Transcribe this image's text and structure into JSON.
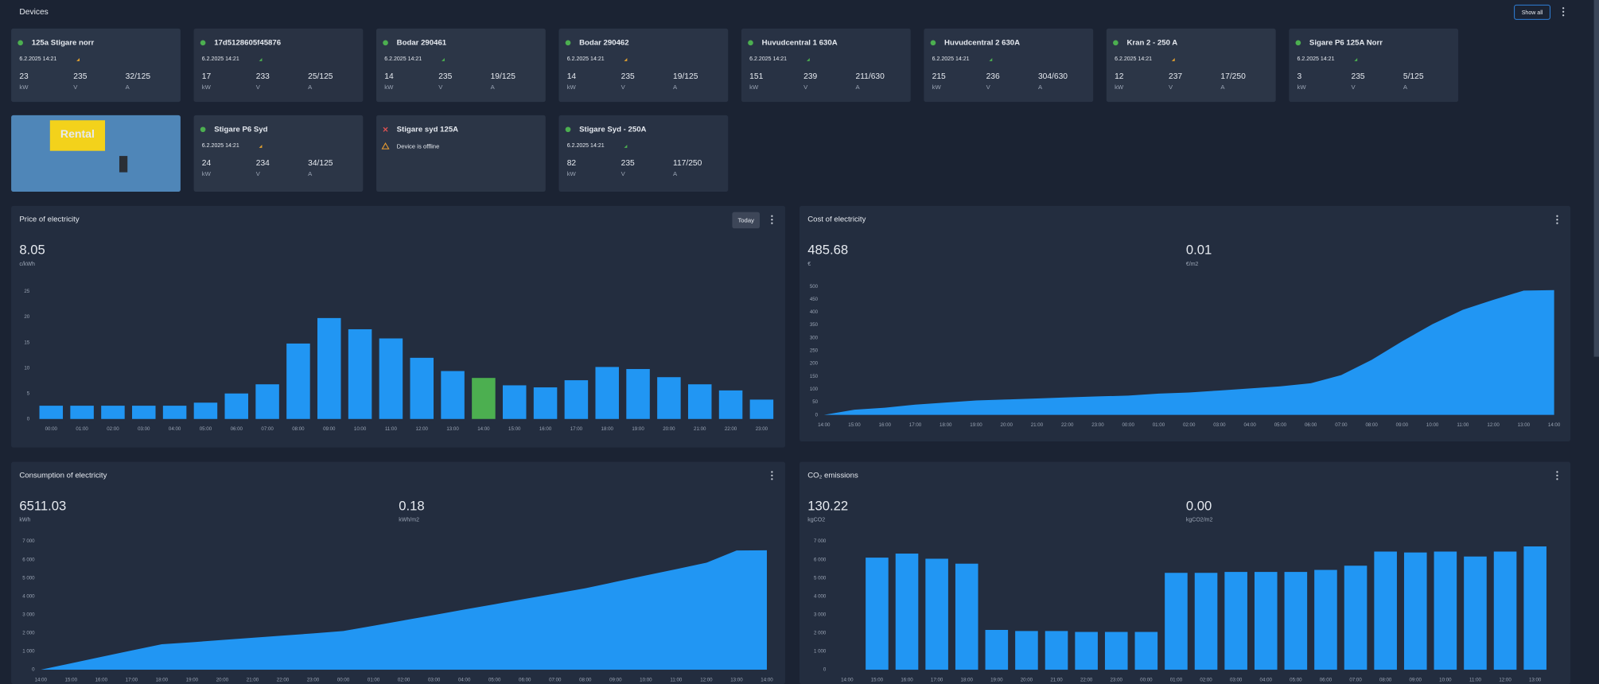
{
  "header": {
    "title": "Devices",
    "button": "Show all"
  },
  "units": {
    "power": "kW",
    "voltage": "V",
    "current": "A"
  },
  "devices": [
    {
      "name": "125a Stigare norr",
      "time": "6.2.2025 14:21",
      "online": true,
      "power": 23,
      "voltage": 235,
      "current": "32/125"
    },
    {
      "name": "17d5128605f45876",
      "time": "6.2.2025 14:21",
      "online": true,
      "power": 17,
      "voltage": 233,
      "current": "25/125"
    },
    {
      "name": "Bodar 290461",
      "time": "6.2.2025 14:21",
      "online": true,
      "power": 14,
      "voltage": 235,
      "current": "19/125"
    },
    {
      "name": "Bodar 290462",
      "time": "6.2.2025 14:21",
      "online": true,
      "power": 14,
      "voltage": 235,
      "current": "19/125"
    },
    {
      "name": "Huvudcentral 1 630A",
      "time": "6.2.2025 14:21",
      "online": true,
      "power": 151,
      "voltage": 239,
      "current": "211/630"
    },
    {
      "name": "Huvudcentral 2 630A",
      "time": "6.2.2025 14:21",
      "online": true,
      "power": 215,
      "voltage": 236,
      "current": "304/630"
    },
    {
      "name": "Kran 2 - 250 A",
      "time": "6.2.2025 14:21",
      "online": true,
      "power": 12,
      "voltage": 237,
      "current": "17/250"
    },
    {
      "name": "Sigare P6 125A Norr",
      "time": "6.2.2025 14:21",
      "online": true,
      "power": 3,
      "voltage": 235,
      "current": "5/125"
    },
    {
      "image_text": "Rental"
    },
    {
      "name": "Stigare P6 Syd",
      "time": "6.2.2025 14:21",
      "online": true,
      "power": 24,
      "voltage": 234,
      "current": "34/125"
    },
    {
      "name": "Stigare syd 125A",
      "online": false,
      "status": "Device is offline"
    },
    {
      "name": "Stigare Syd - 250A",
      "time": "6.2.2025 14:21",
      "online": true,
      "power": 82,
      "voltage": 235,
      "current": "117/250"
    }
  ],
  "chart_data": [
    {
      "type": "bar",
      "title": "Price of electricity",
      "button": "Today",
      "value": "8.05",
      "unit": "c/kWh",
      "categories": [
        "00:00",
        "01:00",
        "02:00",
        "03:00",
        "04:00",
        "05:00",
        "06:00",
        "07:00",
        "08:00",
        "09:00",
        "10:00",
        "11:00",
        "12:00",
        "13:00",
        "14:00",
        "15:00",
        "16:00",
        "17:00",
        "18:00",
        "19:00",
        "20:00",
        "21:00",
        "22:00",
        "23:00"
      ],
      "values": [
        2.6,
        2.6,
        2.6,
        2.6,
        2.6,
        3.2,
        5,
        6.8,
        14.8,
        19.8,
        17.6,
        15.8,
        12,
        9.4,
        8.05,
        6.6,
        6.2,
        7.6,
        10.2,
        9.8,
        8.2,
        6.8,
        5.6,
        3.8
      ],
      "color": "#2196f3",
      "highlight_index": 14,
      "highlight_color": "#4caf50",
      "ylim": [
        0,
        25
      ],
      "yticks": [
        0,
        5,
        10,
        15,
        20,
        25
      ],
      "grid": false
    },
    {
      "type": "area",
      "title": "Cost of electricity",
      "value": "485.68",
      "unit": "€",
      "secondary_value": "0.01",
      "secondary_unit": "€/m2",
      "categories": [
        "14:00",
        "15:00",
        "16:00",
        "17:00",
        "18:00",
        "19:00",
        "20:00",
        "21:00",
        "22:00",
        "23:00",
        "00:00",
        "01:00",
        "02:00",
        "03:00",
        "04:00",
        "05:00",
        "06:00",
        "07:00",
        "08:00",
        "09:00",
        "10:00",
        "11:00",
        "12:00",
        "13:00",
        "14:00"
      ],
      "values": [
        0,
        20,
        28,
        40,
        48,
        56,
        60,
        64,
        68,
        72,
        75,
        83,
        87,
        95,
        103,
        111,
        123,
        155,
        214,
        286,
        353,
        409,
        448,
        484,
        485.68
      ],
      "color": "#2196f3",
      "ylim": [
        0,
        500
      ],
      "yticks": [
        0,
        50,
        100,
        150,
        200,
        250,
        300,
        350,
        400,
        450,
        500
      ],
      "grid": false
    },
    {
      "type": "area",
      "title": "Consumption of electricity",
      "value": "6511.03",
      "unit": "kWh",
      "secondary_value": "0.18",
      "secondary_unit": "kWh/m2",
      "categories": [
        "14:00",
        "15:00",
        "16:00",
        "17:00",
        "18:00",
        "19:00",
        "20:00",
        "21:00",
        "22:00",
        "23:00",
        "00:00",
        "01:00",
        "02:00",
        "03:00",
        "04:00",
        "05:00",
        "06:00",
        "07:00",
        "08:00",
        "09:00",
        "10:00",
        "11:00",
        "12:00",
        "13:00",
        "14:00"
      ],
      "values": [
        0,
        350,
        700,
        1050,
        1390,
        1500,
        1620,
        1740,
        1860,
        1980,
        2110,
        2400,
        2690,
        2980,
        3280,
        3570,
        3860,
        4150,
        4440,
        4790,
        5140,
        5480,
        5830,
        6500,
        6511.03
      ],
      "color": "#2196f3",
      "ylim": [
        0,
        7000
      ],
      "yticks": [
        0,
        {
          "value": 1000,
          "label": "1 000"
        },
        {
          "value": 2000,
          "label": "2 000"
        },
        {
          "value": 3000,
          "label": "3 000"
        },
        {
          "value": 4000,
          "label": "4 000"
        },
        {
          "value": 5000,
          "label": "5 000"
        },
        {
          "value": 6000,
          "label": "6 000"
        },
        {
          "value": 7000,
          "label": "7 000"
        }
      ],
      "grid": false
    },
    {
      "type": "bar",
      "title": "CO₂ emissions",
      "value": "130.22",
      "unit": "kgCO2",
      "secondary_value": "0.00",
      "secondary_unit": "kgCO2/m2",
      "categories": [
        "14:00",
        "15:00",
        "16:00",
        "17:00",
        "18:00",
        "19:00",
        "20:00",
        "21:00",
        "22:00",
        "23:00",
        "00:00",
        "01:00",
        "02:00",
        "03:00",
        "04:00",
        "05:00",
        "06:00",
        "07:00",
        "08:00",
        "09:00",
        "10:00",
        "11:00",
        "12:00",
        "13:00"
      ],
      "values": [
        0,
        6110,
        6330,
        6050,
        5780,
        2170,
        2110,
        2110,
        2060,
        2060,
        2060,
        5280,
        5280,
        5330,
        5330,
        5330,
        5440,
        5670,
        6440,
        6390,
        6440,
        6170,
        6440,
        6720
      ],
      "color": "#2196f3",
      "ylim": [
        0,
        7000
      ],
      "yticks": [
        0,
        {
          "value": 1000,
          "label": "1 000"
        },
        {
          "value": 2000,
          "label": "2 000"
        },
        {
          "value": 3000,
          "label": "3 000"
        },
        {
          "value": 4000,
          "label": "4 000"
        },
        {
          "value": 5000,
          "label": "5 000"
        },
        {
          "value": 6000,
          "label": "6 000"
        },
        {
          "value": 7000,
          "label": "7 000"
        }
      ],
      "grid": false
    }
  ]
}
